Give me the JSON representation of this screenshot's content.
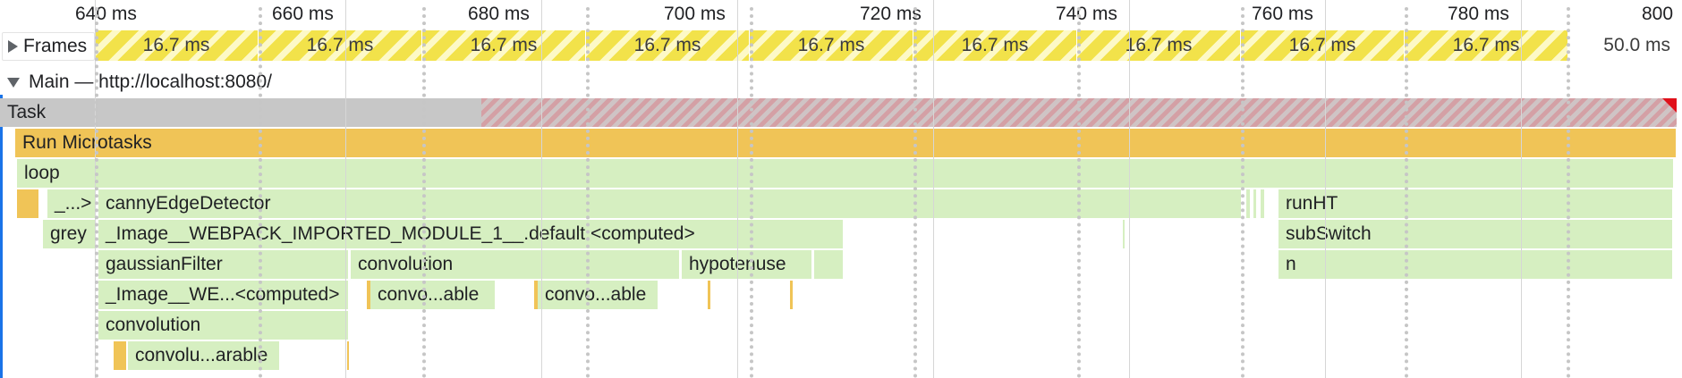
{
  "ruler": {
    "ticks": [
      "640 ms",
      "660 ms",
      "680 ms",
      "700 ms",
      "720 ms",
      "740 ms",
      "760 ms",
      "780 ms",
      "800"
    ]
  },
  "frames": {
    "label": "Frames",
    "icon": "expand-triangle-right-icon",
    "items": [
      "16.7 ms",
      "16.7 ms",
      "16.7 ms",
      "16.7 ms",
      "16.7 ms",
      "16.7 ms",
      "16.7 ms",
      "16.7 ms",
      "16.7 ms"
    ],
    "idle_frame": "50.0 ms"
  },
  "main": {
    "label": "Main — http://localhost:8080/",
    "icon": "collapse-triangle-down-icon"
  },
  "events": {
    "task": "Task",
    "run_microtasks": "Run Microtasks",
    "loop": "loop",
    "truncated": "_...>",
    "canny": "cannyEdgeDetector",
    "runht": "runHT",
    "grey": "grey",
    "image_computed": "_Image__WEBPACK_IMPORTED_MODULE_1__.default.<computed>",
    "subswitch": "subSwitch",
    "gaussian": "gaussianFilter",
    "convolution": "convolution",
    "hypotenuse": "hypotenuse",
    "n": "n",
    "image_short": "_Image__WE...<computed>",
    "convo_able_1": "convo...able",
    "convo_able_2": "convo...able",
    "convolution_2": "convolution",
    "convolu_arable": "convolu...arable"
  },
  "colors": {
    "script": "#d6efc1",
    "microtask": "#f0c457",
    "task": "#c7c7c7",
    "long_task_warning": "#e0101a",
    "frame": "#f2e24a",
    "accent": "#1a73e8"
  }
}
